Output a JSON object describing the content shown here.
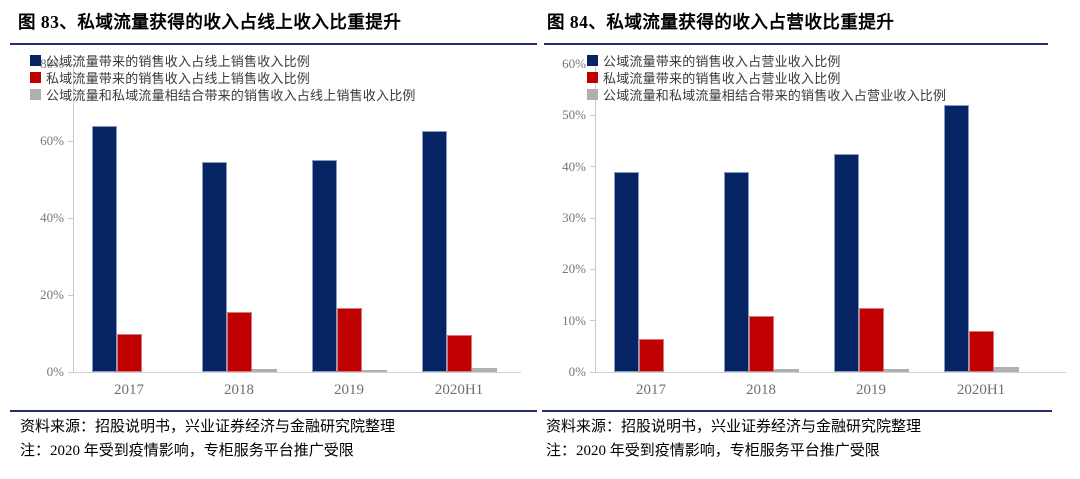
{
  "colors": {
    "navy": "#062463",
    "red": "#c00000",
    "gray": "#b0b0b0",
    "rule_navy": "#252e6a",
    "axis_line": "#c9c9c9",
    "axis_label": "#767676"
  },
  "chart_data": [
    {
      "type": "bar",
      "title": "图 83、私域流量获得的收入占线上收入比重提升",
      "categories": [
        "2017",
        "2018",
        "2019",
        "2020H1"
      ],
      "series": [
        {
          "key": "public-traffic",
          "color": "navy",
          "name": "公域流量带来的销售收入占线上销售收入比例",
          "values": [
            64,
            54.5,
            55,
            62.5
          ]
        },
        {
          "key": "private-traffic",
          "color": "red",
          "name": "私域流量带来的销售收入占线上销售收入比例",
          "values": [
            10,
            15.5,
            16.5,
            9.5
          ]
        },
        {
          "key": "combined-traffic",
          "color": "gray",
          "name": "公域流量和私域流量相结合带来的销售收入占线上销售收入比例",
          "values": [
            0,
            0.8,
            0.5,
            1
          ]
        }
      ],
      "unit": "%",
      "ylim": [
        0,
        80
      ],
      "yticks": [
        0,
        20,
        40,
        60,
        80
      ],
      "grid": false,
      "legend_position": "top-left-inside",
      "xlabel": "",
      "ylabel": "",
      "source": "资料来源：招股说明书，兴业证券经济与金融研究院整理",
      "note": "注：2020 年受到疫情影响，专柜服务平台推广受限"
    },
    {
      "type": "bar",
      "title": "图 84、私域流量获得的收入占营收比重提升",
      "categories": [
        "2017",
        "2018",
        "2019",
        "2020H1"
      ],
      "series": [
        {
          "key": "public-traffic",
          "color": "navy",
          "name": "公域流量带来的销售收入占营业收入比例",
          "values": [
            39,
            39,
            42.5,
            52
          ]
        },
        {
          "key": "private-traffic",
          "color": "red",
          "name": "私域流量带来的销售收入占营业收入比例",
          "values": [
            6.5,
            11,
            12.5,
            8
          ]
        },
        {
          "key": "combined-traffic",
          "color": "gray",
          "name": "公域流量和私域流量相结合带来的销售收入占营业收入比例",
          "values": [
            0,
            0.6,
            0.5,
            1
          ]
        }
      ],
      "unit": "%",
      "ylim": [
        0,
        60
      ],
      "yticks": [
        0,
        10,
        20,
        30,
        40,
        50,
        60
      ],
      "grid": false,
      "legend_position": "top-left-inside",
      "xlabel": "",
      "ylabel": "",
      "source": "资料来源：招股说明书，兴业证券经济与金融研究院整理",
      "note": "注：2020 年受到疫情影响，专柜服务平台推广受限"
    }
  ]
}
